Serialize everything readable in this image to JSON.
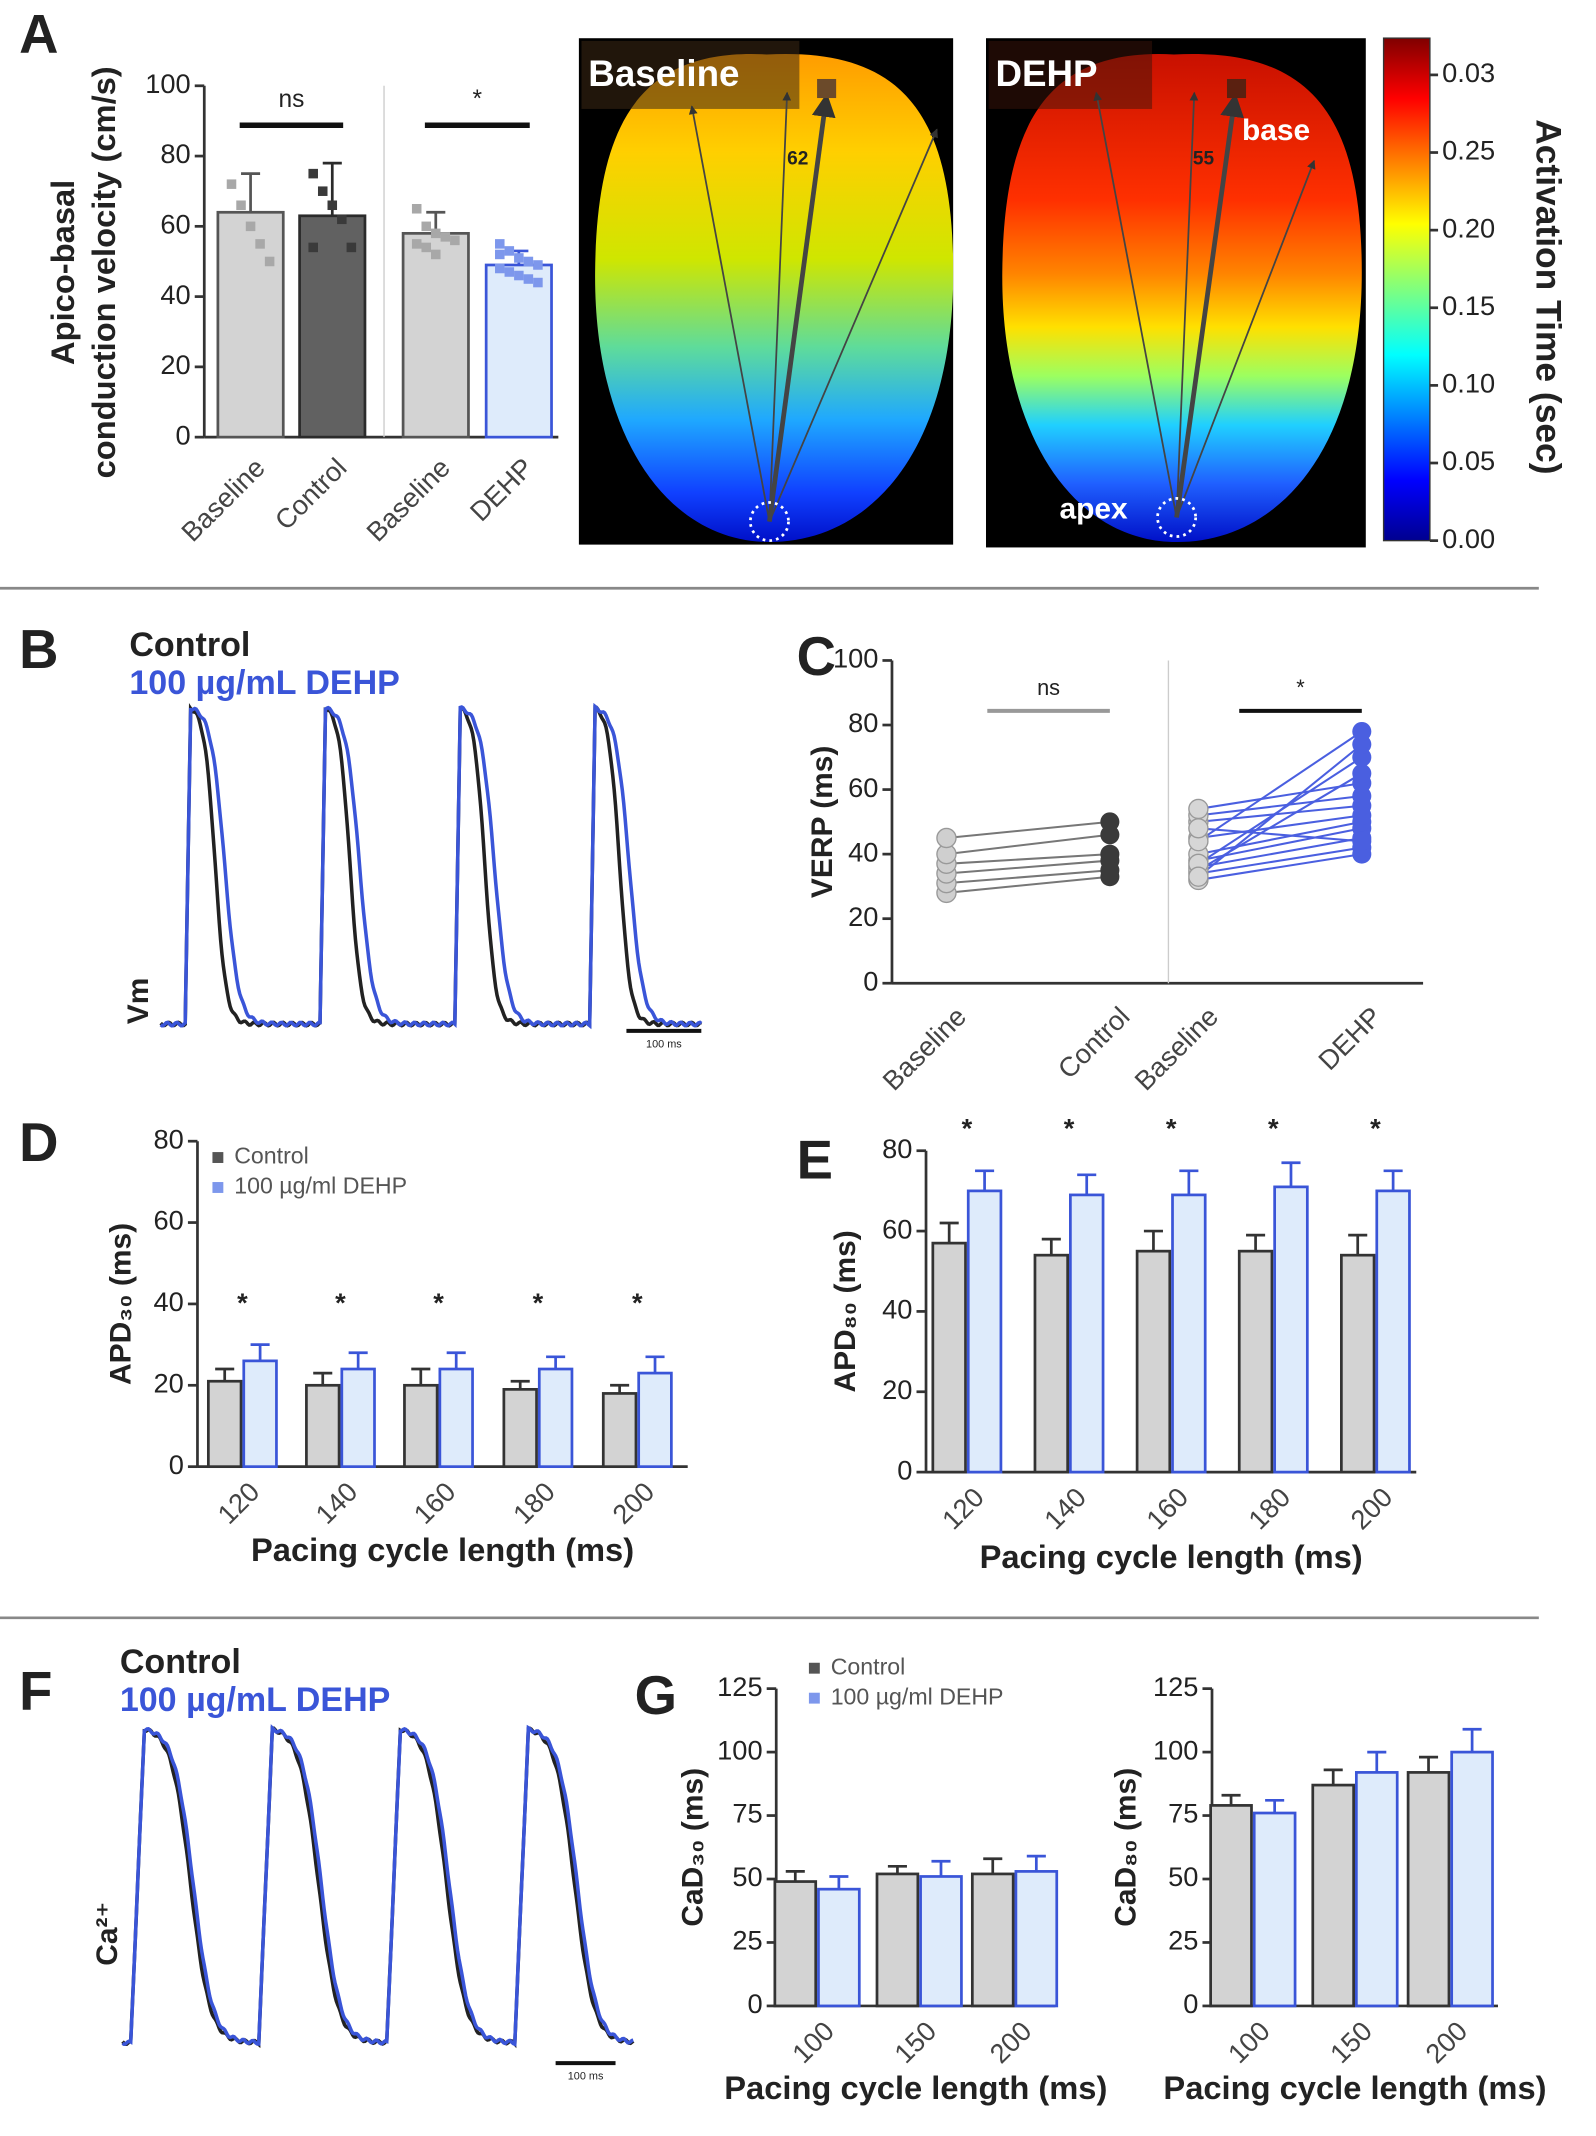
{
  "chart_data": [
    {
      "type": "bar",
      "panel": "A",
      "ylabel": [
        "Apico-basal",
        "conduction velocity (cm/s)"
      ],
      "categories": [
        "Baseline",
        "Control",
        "Baseline",
        "DEHP"
      ],
      "values": [
        64,
        63,
        58,
        49
      ],
      "errors": [
        11,
        15,
        6,
        4
      ],
      "colors": [
        "#d3d3d3",
        "#616161",
        "#d3d3d3",
        "#deebfb"
      ],
      "edge_colors": [
        "#555555",
        "#2b2b2b",
        "#555555",
        "#3a55d8"
      ],
      "points": [
        [
          72,
          66,
          60,
          55,
          50
        ],
        [
          75,
          70,
          66,
          62,
          54,
          54
        ],
        [
          65,
          60,
          58,
          57,
          56,
          55,
          54,
          52
        ],
        [
          55,
          53,
          51,
          50,
          49,
          48,
          47,
          46,
          45,
          44,
          52
        ]
      ],
      "point_colors": [
        "#a8a8a8",
        "#3a3a3a",
        "#a8a8a8",
        "#7d97ec"
      ],
      "ylim": [
        0,
        100
      ],
      "yticks": [
        0,
        20,
        40,
        60,
        80,
        100
      ],
      "annotations": [
        "ns",
        "*"
      ]
    },
    {
      "type": "colorbar",
      "title": "Activation Time (sec)",
      "ticklabels": [
        "0.00",
        "0.05",
        "0.10",
        "0.15",
        "0.20",
        "0.25",
        "0.03"
      ],
      "maps": [
        {
          "label": "Baseline",
          "annotations": [
            "62"
          ]
        },
        {
          "label": "DEHP",
          "annotations": [
            "55",
            "base",
            "apex"
          ]
        }
      ]
    },
    {
      "type": "trace",
      "panel": "B",
      "ylabel": "Vm",
      "scale_label": "100 ms",
      "series": [
        {
          "name": "Control",
          "color": "#222222"
        },
        {
          "name": "100 µg/mL DEHP",
          "color": "#3a55d8"
        }
      ]
    },
    {
      "type": "paired",
      "panel": "C",
      "ylabel": "VERP (ms)",
      "categories": [
        "Baseline",
        "Control",
        "Baseline",
        "DEHP"
      ],
      "ylim": [
        0,
        100
      ],
      "yticks": [
        0,
        20,
        40,
        60,
        80,
        100
      ],
      "annotations": [
        "ns",
        "*"
      ],
      "groups": [
        {
          "before": [
            28,
            31,
            34,
            37,
            40,
            45
          ],
          "after": [
            33,
            35,
            38,
            40,
            46,
            50
          ],
          "colors": [
            "#cfcfcf",
            "#3a3a3a"
          ],
          "line_color": "#777777"
        },
        {
          "before": [
            32,
            34,
            36,
            38,
            40,
            45,
            50,
            52,
            54,
            35,
            37,
            33,
            44,
            48
          ],
          "after": [
            40,
            42,
            45,
            48,
            50,
            52,
            55,
            58,
            62,
            65,
            70,
            74,
            78,
            44
          ],
          "colors": [
            "#d6d6d6",
            "#4a5fe0"
          ],
          "line_color": "#4a5fe0"
        }
      ]
    },
    {
      "type": "grouped_bar",
      "panel": "D",
      "ylabel": "APD₃₀ (ms)",
      "xlabel": "Pacing cycle length (ms)",
      "categories": [
        120,
        140,
        160,
        180,
        200
      ],
      "ylim": [
        0,
        80
      ],
      "yticks": [
        0,
        20,
        40,
        60,
        80
      ],
      "annotations": [
        "*",
        "*",
        "*",
        "*",
        "*"
      ],
      "series": [
        {
          "name": "Control",
          "color": "#d3d3d3",
          "edge_color": "#333333",
          "values": [
            21,
            20,
            20,
            19,
            18
          ],
          "errors": [
            3,
            3,
            4,
            2,
            2
          ]
        },
        {
          "name": "100 µg/ml DEHP",
          "color": "#deebfb",
          "edge_color": "#3a55d8",
          "values": [
            26,
            24,
            24,
            24,
            23
          ],
          "errors": [
            4,
            4,
            4,
            3,
            4
          ]
        }
      ]
    },
    {
      "type": "grouped_bar",
      "panel": "E",
      "ylabel": "APD₈₀ (ms)",
      "xlabel": "Pacing cycle length (ms)",
      "categories": [
        120,
        140,
        160,
        180,
        200
      ],
      "ylim": [
        0,
        80
      ],
      "yticks": [
        0,
        20,
        40,
        60,
        80
      ],
      "annotations": [
        "*",
        "*",
        "*",
        "*",
        "*"
      ],
      "series": [
        {
          "name": "Control",
          "color": "#d3d3d3",
          "edge_color": "#333333",
          "values": [
            57,
            54,
            55,
            55,
            54
          ],
          "errors": [
            5,
            4,
            5,
            4,
            5
          ]
        },
        {
          "name": "100 µg/ml DEHP",
          "color": "#deebfb",
          "edge_color": "#3a55d8",
          "values": [
            70,
            69,
            69,
            71,
            70
          ],
          "errors": [
            5,
            5,
            6,
            6,
            5
          ]
        }
      ]
    },
    {
      "type": "trace",
      "panel": "F",
      "ylabel": "Ca²⁺",
      "scale_label": "100 ms",
      "series": [
        {
          "name": "Control",
          "color": "#222222"
        },
        {
          "name": "100 µg/mL DEHP",
          "color": "#3a55d8"
        }
      ]
    },
    {
      "type": "grouped_bar",
      "panel": "G",
      "ylabel": "CaD₃₀ (ms)",
      "xlabel": "Pacing cycle length (ms)",
      "categories": [
        100,
        150,
        200
      ],
      "ylim": [
        0,
        125
      ],
      "yticks": [
        0,
        25,
        50,
        75,
        100,
        125
      ],
      "series": [
        {
          "name": "Control",
          "color": "#d3d3d3",
          "edge_color": "#333333",
          "values": [
            49,
            52,
            52
          ],
          "errors": [
            4,
            3,
            6
          ]
        },
        {
          "name": "100 µg/ml DEHP",
          "color": "#deebfb",
          "edge_color": "#3a55d8",
          "values": [
            46,
            51,
            53
          ],
          "errors": [
            5,
            6,
            6
          ]
        }
      ]
    },
    {
      "type": "grouped_bar",
      "ylabel": "CaD₈₀ (ms)",
      "xlabel": "Pacing cycle length (ms)",
      "categories": [
        100,
        150,
        200
      ],
      "ylim": [
        0,
        125
      ],
      "yticks": [
        0,
        25,
        50,
        75,
        100,
        125
      ],
      "series": [
        {
          "name": "Control",
          "color": "#d3d3d3",
          "edge_color": "#333333",
          "values": [
            79,
            87,
            92
          ],
          "errors": [
            4,
            6,
            6
          ]
        },
        {
          "name": "100 µg/ml DEHP",
          "color": "#deebfb",
          "edge_color": "#3a55d8",
          "values": [
            76,
            92,
            100
          ],
          "errors": [
            5,
            8,
            9
          ]
        }
      ]
    }
  ]
}
